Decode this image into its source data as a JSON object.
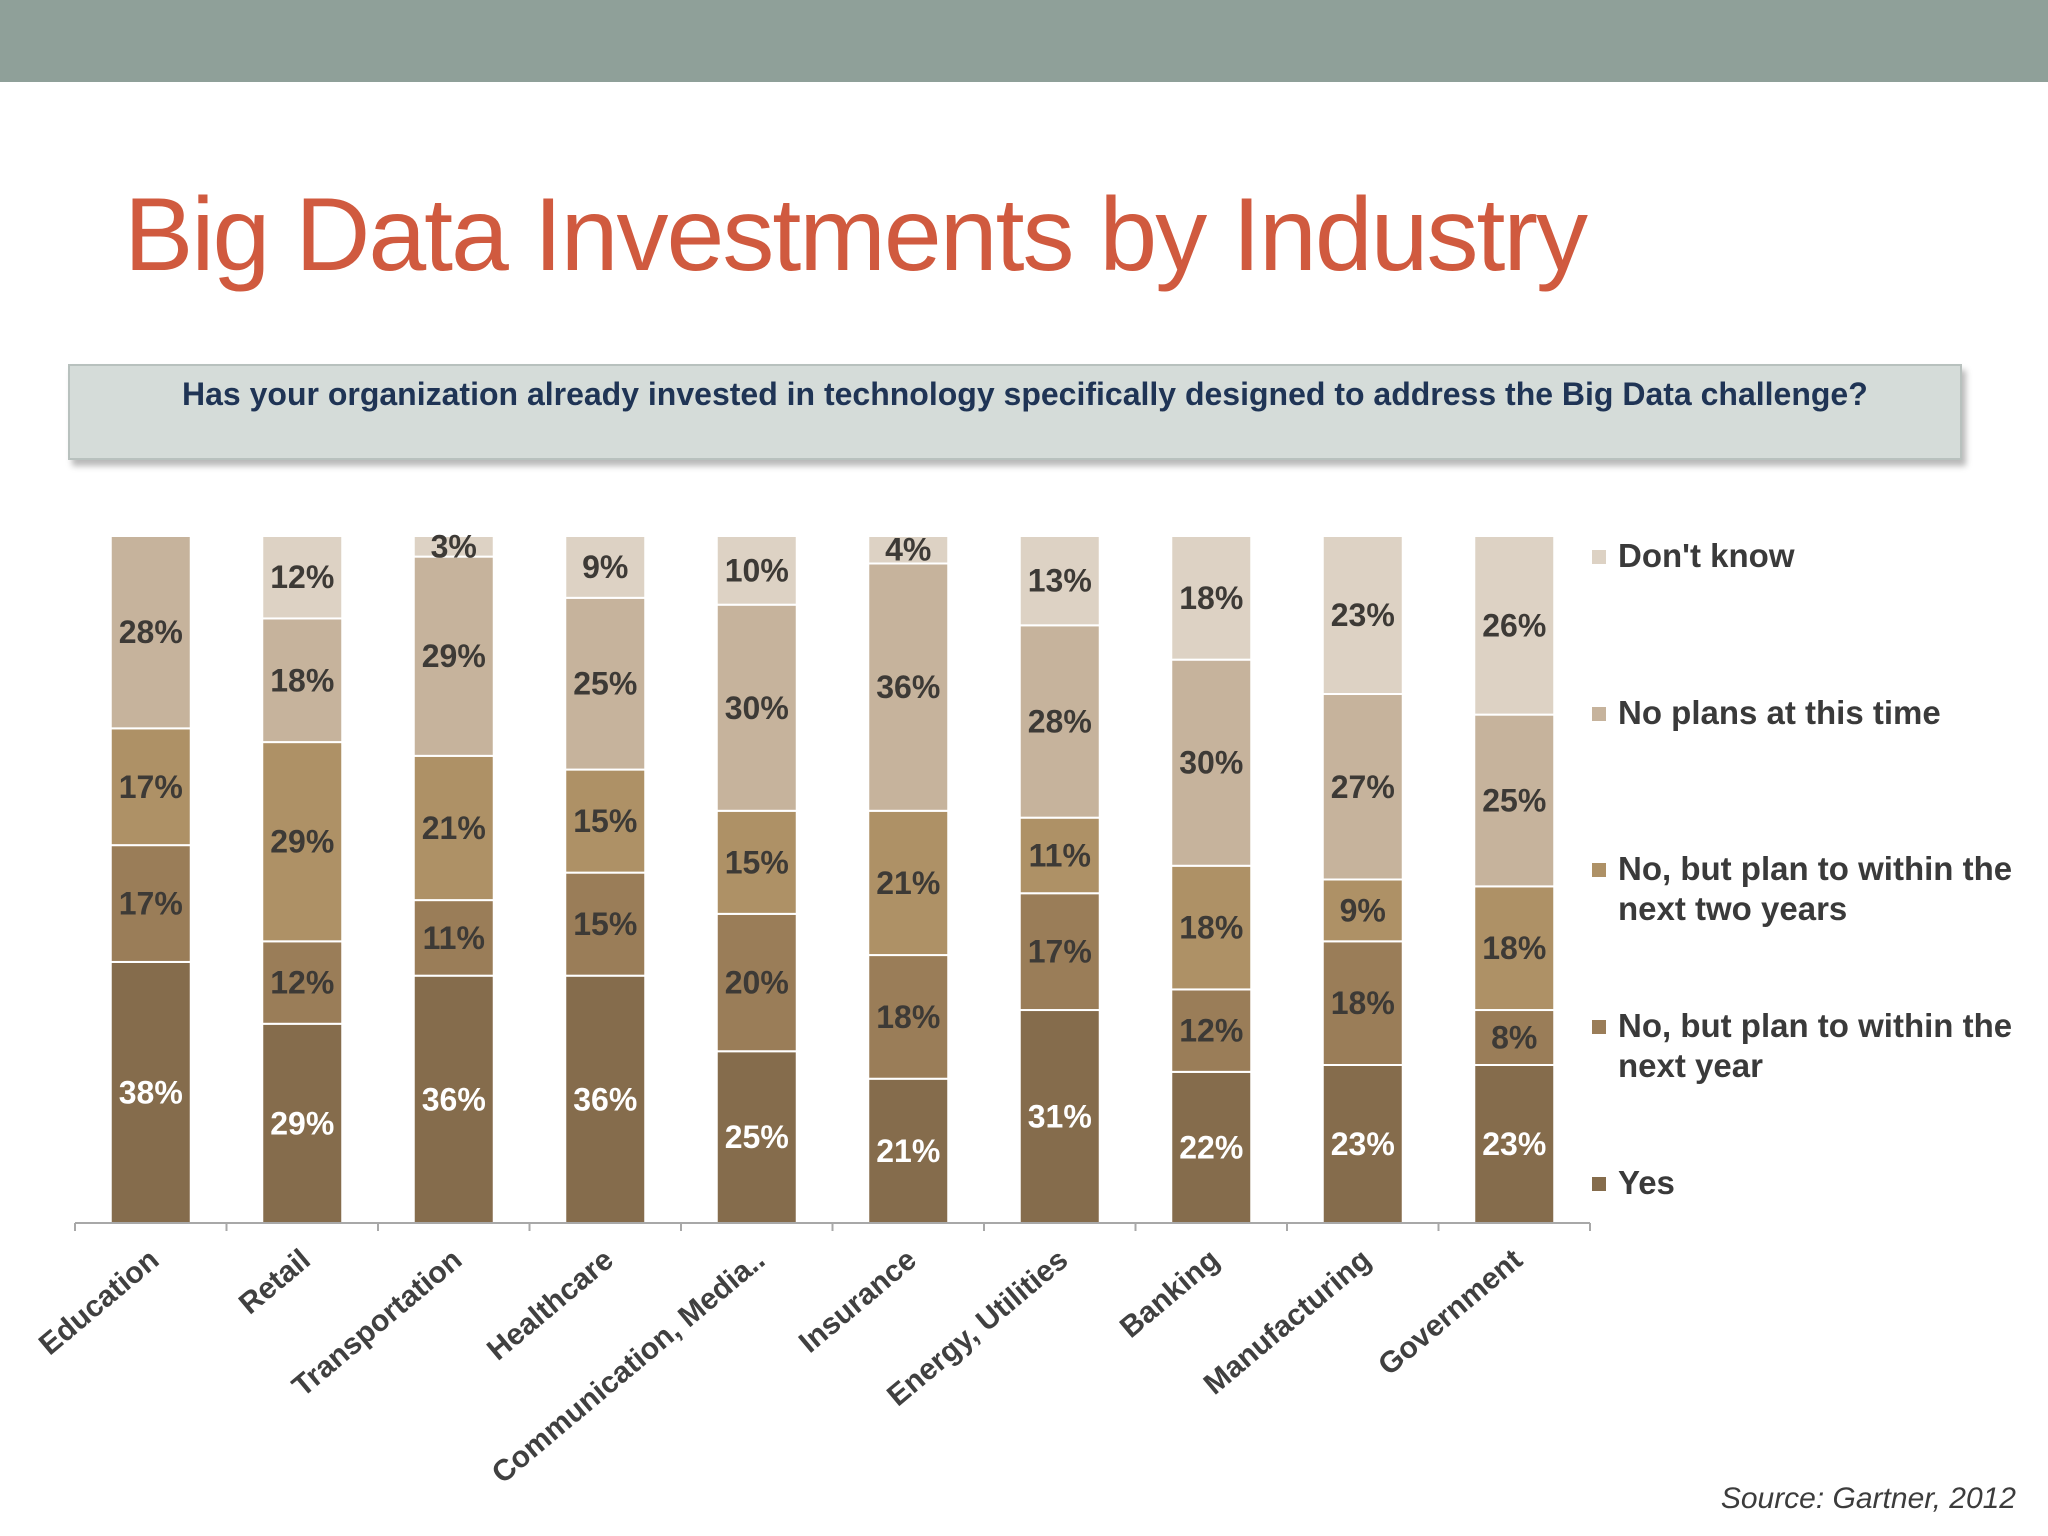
{
  "slide": {
    "title": "Big Data Investments by Industry",
    "question": "Has your organization already invested in technology specifically designed to address the Big Data challenge?",
    "source": "Source: Gartner, 2012"
  },
  "colors": {
    "top_bar": "#8fa099",
    "title": "#d05a3f",
    "yes": "#856c4c",
    "next_year": "#9a7d58",
    "two_years": "#ae9166",
    "no_plans": "#c6b39c",
    "dont_know": "#ddd2c4"
  },
  "chart_data": {
    "type": "bar",
    "stacked": true,
    "categories": [
      "Education",
      "Retail",
      "Transportation",
      "Healthcare",
      "Communication, Media..",
      "Insurance",
      "Energy, Utilities",
      "Banking",
      "Manufacturing",
      "Government"
    ],
    "ylim": [
      0,
      100
    ],
    "unit": "%",
    "series": [
      {
        "name": "Yes",
        "color": "#856c4c",
        "values": [
          38,
          29,
          36,
          36,
          25,
          21,
          31,
          22,
          23,
          23
        ]
      },
      {
        "name": "No, but plan to within the next year",
        "color": "#9a7d58",
        "values": [
          17,
          12,
          11,
          15,
          20,
          18,
          17,
          12,
          18,
          8
        ]
      },
      {
        "name": "No, but plan to within the next two years",
        "color": "#ae9166",
        "values": [
          17,
          29,
          21,
          15,
          15,
          21,
          11,
          18,
          9,
          18
        ]
      },
      {
        "name": "No plans at this time",
        "color": "#c6b39c",
        "values": [
          28,
          18,
          29,
          25,
          30,
          36,
          28,
          30,
          27,
          25
        ]
      },
      {
        "name": "Don't know",
        "color": "#ddd2c4",
        "values": [
          0,
          12,
          3,
          9,
          10,
          4,
          13,
          18,
          23,
          26
        ]
      }
    ],
    "legend_position": "right",
    "grid": false
  },
  "legend": {
    "items": [
      {
        "label": "Don't know",
        "color": "#ddd2c4"
      },
      {
        "label": "No plans at this time",
        "color": "#c6b39c"
      },
      {
        "label": "No, but plan to within the next two years",
        "color": "#ae9166"
      },
      {
        "label": "No, but plan to within the next year",
        "color": "#9a7d58"
      },
      {
        "label": "Yes",
        "color": "#856c4c"
      }
    ]
  }
}
